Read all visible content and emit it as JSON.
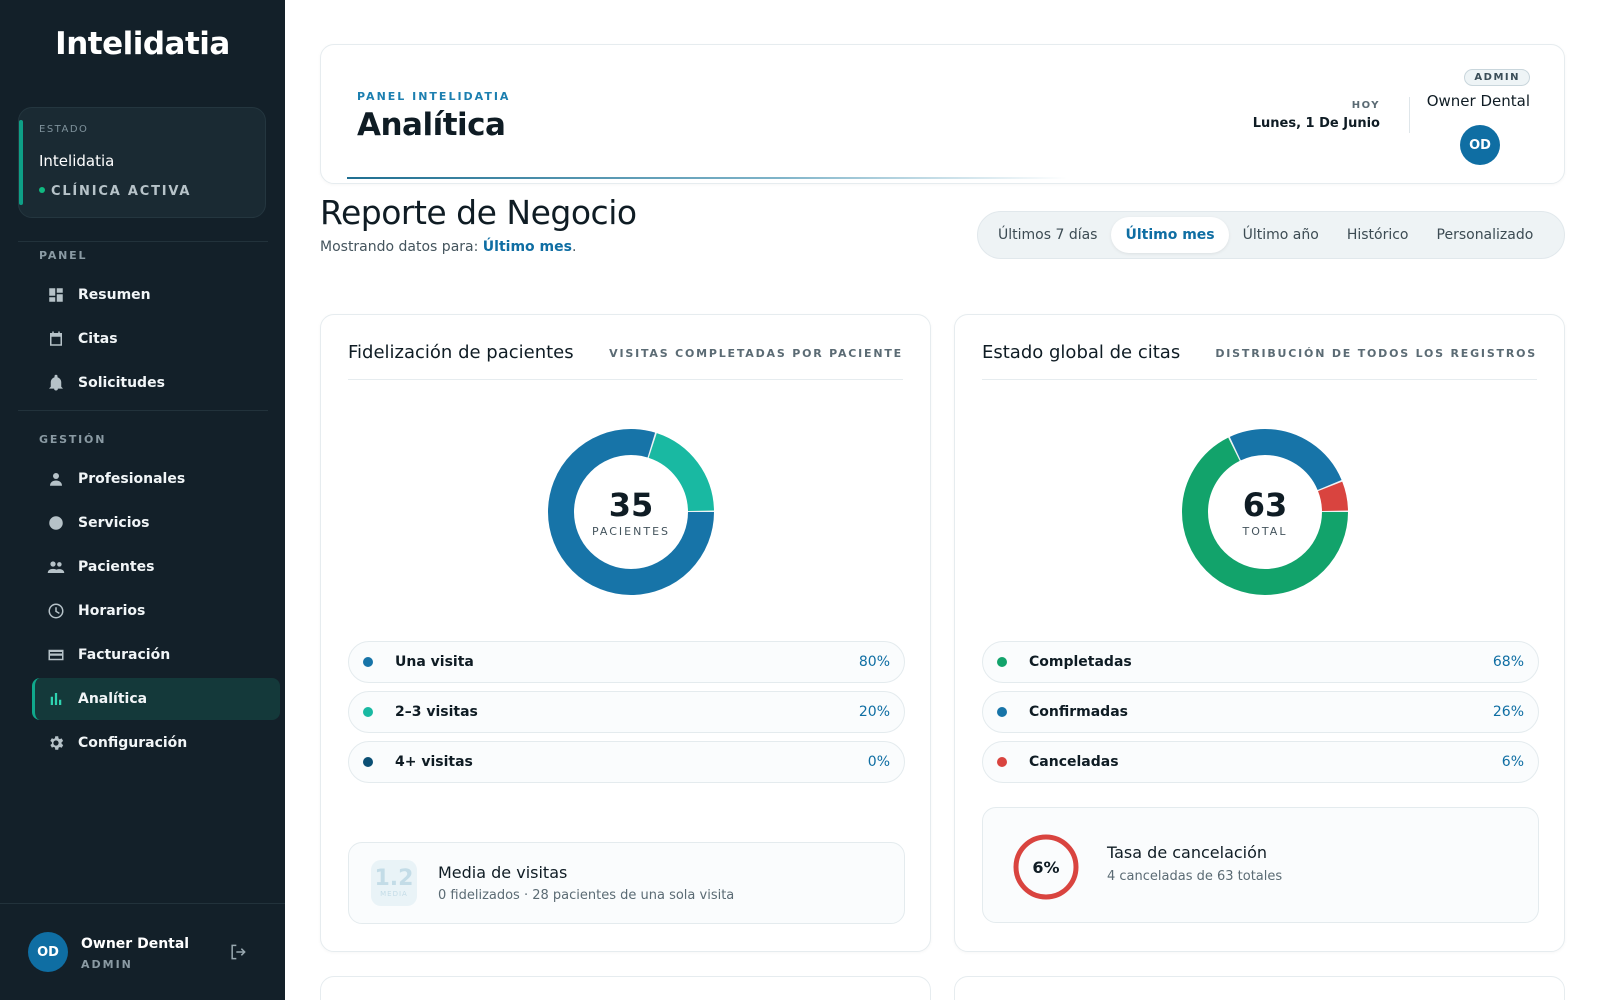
{
  "sidebar": {
    "logo": "Intelidatia",
    "status": {
      "label": "ESTADO",
      "name": "Intelidatia",
      "state": "CLÍNICA ACTIVA"
    },
    "sections": {
      "panel": "PANEL",
      "gestion": "GESTIÓN"
    },
    "panel_items": [
      {
        "label": "Resumen",
        "icon": "dashboard-icon"
      },
      {
        "label": "Citas",
        "icon": "calendar-icon"
      },
      {
        "label": "Solicitudes",
        "icon": "bell-icon"
      }
    ],
    "gestion_items": [
      {
        "label": "Profesionales",
        "icon": "user-icon"
      },
      {
        "label": "Servicios",
        "icon": "tooth-icon"
      },
      {
        "label": "Pacientes",
        "icon": "people-icon"
      },
      {
        "label": "Horarios",
        "icon": "clock-icon"
      },
      {
        "label": "Facturación",
        "icon": "card-icon"
      },
      {
        "label": "Analítica",
        "icon": "bar-chart-icon",
        "active": true
      },
      {
        "label": "Configuración",
        "icon": "gear-icon"
      }
    ],
    "user": {
      "initials": "OD",
      "name": "Owner Dental",
      "role": "ADMIN"
    }
  },
  "header": {
    "eyebrow": "PANEL INTELIDATIA",
    "title": "Analítica",
    "today_label": "HOY",
    "today_value": "Lunes, 1 De Junio",
    "role_badge": "ADMIN",
    "user_name": "Owner Dental",
    "user_initials": "OD"
  },
  "report": {
    "title": "Reporte de Negocio",
    "subtitle_prefix": "Mostrando datos para: ",
    "subtitle_value": "Último mes",
    "subtitle_suffix": "."
  },
  "range_tabs": [
    {
      "label": "Últimos 7 días"
    },
    {
      "label": "Último mes",
      "active": true
    },
    {
      "label": "Último año"
    },
    {
      "label": "Histórico"
    },
    {
      "label": "Personalizado"
    }
  ],
  "colors": {
    "primary": "#0f6ea3",
    "teal": "#19b9a2",
    "navy": "#0b4f74",
    "green": "#12a36b",
    "red": "#d9443f",
    "sidebar_bg": "#132029"
  },
  "fidelizacion": {
    "title": "Fidelización de pacientes",
    "subtitle": "VISITAS COMPLETADAS POR PACIENTE",
    "total": "35",
    "total_unit": "PACIENTES",
    "chart_data": {
      "type": "pie",
      "categories": [
        "Una visita",
        "2–3 visitas",
        "4+ visitas"
      ],
      "values": [
        80,
        20,
        0
      ],
      "colors": [
        "#1774a8",
        "#19b9a2",
        "#0b4f74"
      ]
    },
    "legend": [
      {
        "label": "Una visita",
        "pct": "80%",
        "color": "#1774a8"
      },
      {
        "label": "2–3 visitas",
        "pct": "20%",
        "color": "#19b9a2"
      },
      {
        "label": "4+ visitas",
        "pct": "0%",
        "color": "#0b4f74"
      }
    ],
    "stat": {
      "badge_value": "1.2",
      "badge_label": "MEDIA",
      "title": "Media de visitas",
      "subtitle": "0 fidelizados · 28 pacientes de una sola visita"
    }
  },
  "estado": {
    "title": "Estado global de citas",
    "subtitle": "DISTRIBUCIÓN DE TODOS LOS REGISTROS",
    "total": "63",
    "total_unit": "TOTAL",
    "chart_data": {
      "type": "pie",
      "categories": [
        "Completadas",
        "Confirmadas",
        "Canceladas"
      ],
      "values": [
        68,
        26,
        6
      ],
      "colors": [
        "#12a36b",
        "#1774a8",
        "#d9443f"
      ]
    },
    "legend": [
      {
        "label": "Completadas",
        "pct": "68%",
        "color": "#12a36b"
      },
      {
        "label": "Confirmadas",
        "pct": "26%",
        "color": "#1774a8"
      },
      {
        "label": "Canceladas",
        "pct": "6%",
        "color": "#d9443f"
      }
    ],
    "stat": {
      "ring_value": "6%",
      "ring_fraction": 1.0,
      "title": "Tasa de cancelación",
      "subtitle": "4 canceladas de 63 totales"
    }
  }
}
